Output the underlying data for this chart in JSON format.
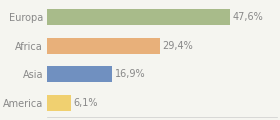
{
  "categories": [
    "America",
    "Asia",
    "Africa",
    "Europa"
  ],
  "values": [
    6.1,
    16.9,
    29.4,
    47.6
  ],
  "labels": [
    "6,1%",
    "16,9%",
    "29,4%",
    "47,6%"
  ],
  "bar_colors": [
    "#f0d070",
    "#7090c0",
    "#e8b07a",
    "#a8bb8a"
  ],
  "background_color": "#f5f5f0",
  "text_color": "#888888",
  "label_fontsize": 7.0,
  "tick_fontsize": 7.0,
  "xlim": [
    0,
    60
  ],
  "bar_height": 0.55
}
